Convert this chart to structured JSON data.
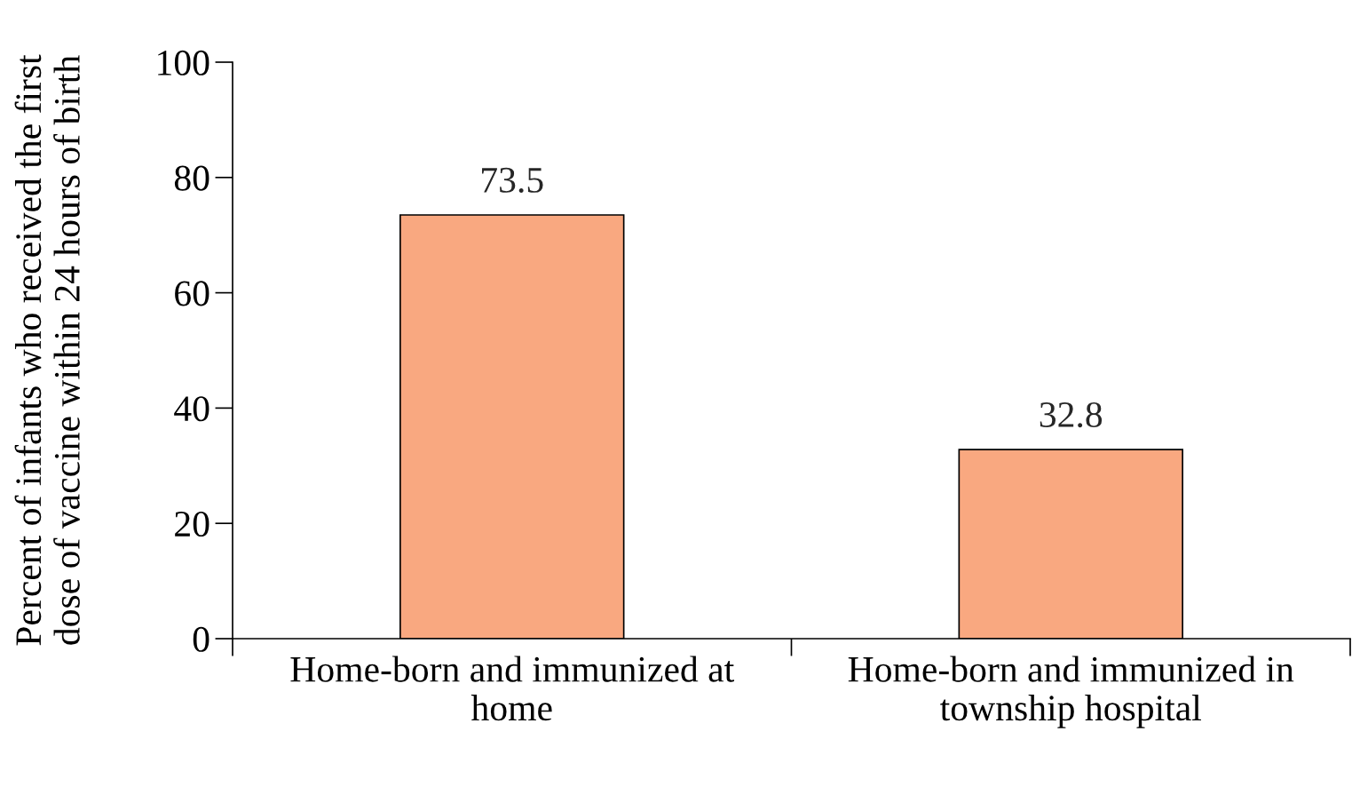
{
  "chart_data": {
    "type": "bar",
    "ylabel": "Percent of infants who received the first\ndose of vaccine within 24 hours of birth",
    "categories": [
      "Home-born and immunized at\nhome",
      "Home-born and immunized in\ntownship hospital"
    ],
    "values": [
      73.5,
      32.8
    ],
    "color": "#f9a880",
    "ylim": [
      0,
      100
    ],
    "yticks": [
      0,
      20,
      40,
      60,
      80,
      100
    ],
    "grid": false,
    "data_labels": true
  }
}
